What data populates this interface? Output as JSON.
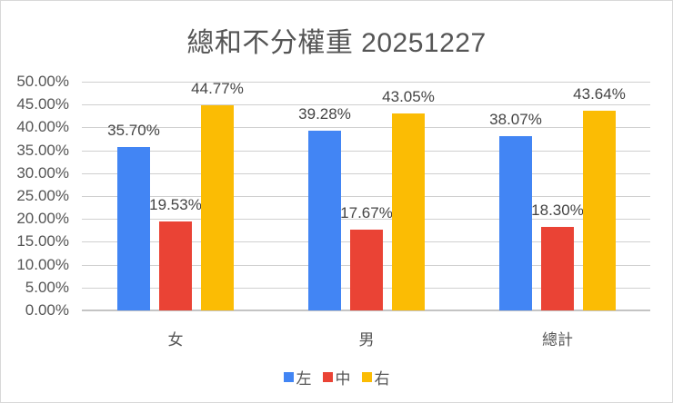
{
  "chart_data": {
    "type": "bar",
    "title": "總和不分權重 20251227",
    "xlabel": "",
    "ylabel": "",
    "ylim": [
      0,
      50
    ],
    "yticks": [
      "0.00%",
      "5.00%",
      "10.00%",
      "15.00%",
      "20.00%",
      "25.00%",
      "30.00%",
      "35.00%",
      "40.00%",
      "45.00%",
      "50.00%"
    ],
    "grid": true,
    "legend_position": "bottom",
    "categories": [
      "女",
      "男",
      "總計"
    ],
    "series": [
      {
        "name": "左",
        "color": "#4285F4",
        "values": [
          35.7,
          39.28,
          38.07
        ],
        "labels": [
          "35.70%",
          "39.28%",
          "38.07%"
        ]
      },
      {
        "name": "中",
        "color": "#EA4335",
        "values": [
          19.53,
          17.67,
          18.3
        ],
        "labels": [
          "19.53%",
          "17.67%",
          "18.30%"
        ]
      },
      {
        "name": "右",
        "color": "#FBBC04",
        "values": [
          44.77,
          43.05,
          43.64
        ],
        "labels": [
          "44.77%",
          "43.05%",
          "43.64%"
        ]
      }
    ]
  }
}
